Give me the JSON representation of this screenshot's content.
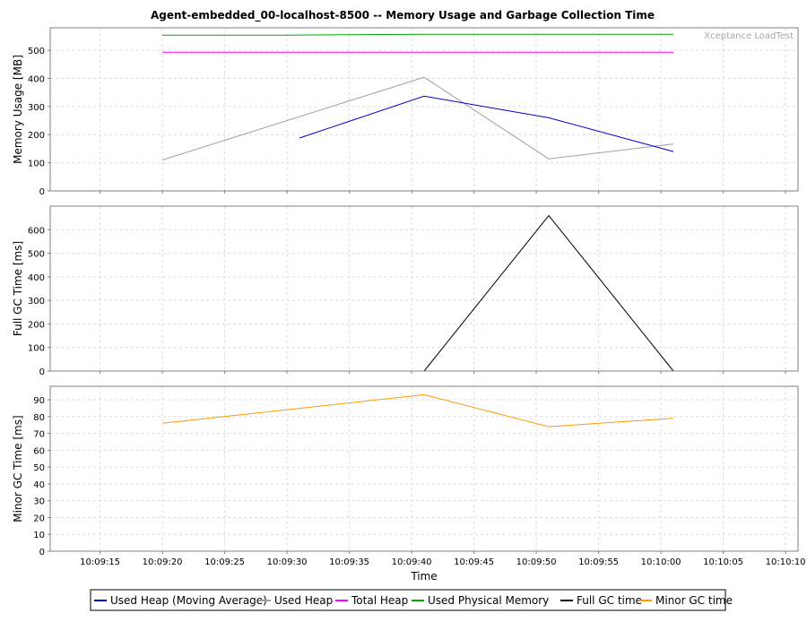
{
  "chart_data": {
    "type": "line",
    "title": "Agent-embedded_00-localhost-8500 -- Memory Usage and Garbage Collection Time",
    "watermark": "Xceptance LoadTest",
    "xlabel": "Time",
    "xlim": [
      "10:09:11",
      "10:10:11"
    ],
    "x_ticks": [
      "10:09:15",
      "10:09:20",
      "10:09:25",
      "10:09:30",
      "10:09:35",
      "10:09:40",
      "10:09:45",
      "10:09:50",
      "10:09:55",
      "10:10:00",
      "10:10:05",
      "10:10:10"
    ],
    "grid": true,
    "legend_position": "bottom",
    "panels": [
      {
        "ylabel": "Memory Usage [MB]",
        "ylim": [
          0,
          580
        ],
        "y_ticks": [
          0,
          100,
          200,
          300,
          400,
          500
        ],
        "series": [
          {
            "name": "Used Physical Memory",
            "color": "#00aa00",
            "points": [
              [
                "10:09:20",
                554
              ],
              [
                "10:09:30",
                554
              ],
              [
                "10:09:41",
                557
              ],
              [
                "10:09:51",
                557
              ],
              [
                "10:10:01",
                557
              ]
            ]
          },
          {
            "name": "Total Heap",
            "color": "#ff00ff",
            "points": [
              [
                "10:09:20",
                493
              ],
              [
                "10:09:30",
                493
              ],
              [
                "10:09:41",
                493
              ],
              [
                "10:09:51",
                493
              ],
              [
                "10:10:01",
                493
              ]
            ]
          },
          {
            "name": "Used Heap",
            "color": "#a0a0a0",
            "points": [
              [
                "10:09:20",
                110
              ],
              [
                "10:09:41",
                404
              ],
              [
                "10:09:51",
                114
              ],
              [
                "10:10:01",
                167
              ]
            ]
          },
          {
            "name": "Used Heap (Moving Average)",
            "color": "#0000cc",
            "points": [
              [
                "10:09:31",
                188
              ],
              [
                "10:09:41",
                337
              ],
              [
                "10:09:51",
                260
              ],
              [
                "10:10:01",
                140
              ]
            ]
          }
        ]
      },
      {
        "ylabel": "Full GC Time [ms]",
        "ylim": [
          0,
          700
        ],
        "y_ticks": [
          0,
          100,
          200,
          300,
          400,
          500,
          600
        ],
        "series": [
          {
            "name": "Full GC time",
            "color": "#000000",
            "points": [
              [
                "10:09:41",
                0
              ],
              [
                "10:09:51",
                660
              ],
              [
                "10:10:01",
                0
              ]
            ]
          }
        ]
      },
      {
        "ylabel": "Minor GC Time [ms]",
        "ylim": [
          0,
          98
        ],
        "y_ticks": [
          0,
          10,
          20,
          30,
          40,
          50,
          60,
          70,
          80,
          90
        ],
        "series": [
          {
            "name": "Minor GC time",
            "color": "#ff9900",
            "points": [
              [
                "10:09:20",
                76
              ],
              [
                "10:09:41",
                93
              ],
              [
                "10:09:51",
                74
              ],
              [
                "10:10:01",
                79
              ]
            ]
          }
        ]
      }
    ],
    "legend": [
      {
        "name": "Used Heap (Moving Average)",
        "color": "#0000cc"
      },
      {
        "name": "Used Heap",
        "color": "#a0a0a0"
      },
      {
        "name": "Total Heap",
        "color": "#ff00ff"
      },
      {
        "name": "Used Physical Memory",
        "color": "#00aa00"
      },
      {
        "name": "Full GC time",
        "color": "#000000"
      },
      {
        "name": "Minor GC time",
        "color": "#ff9900"
      }
    ]
  }
}
